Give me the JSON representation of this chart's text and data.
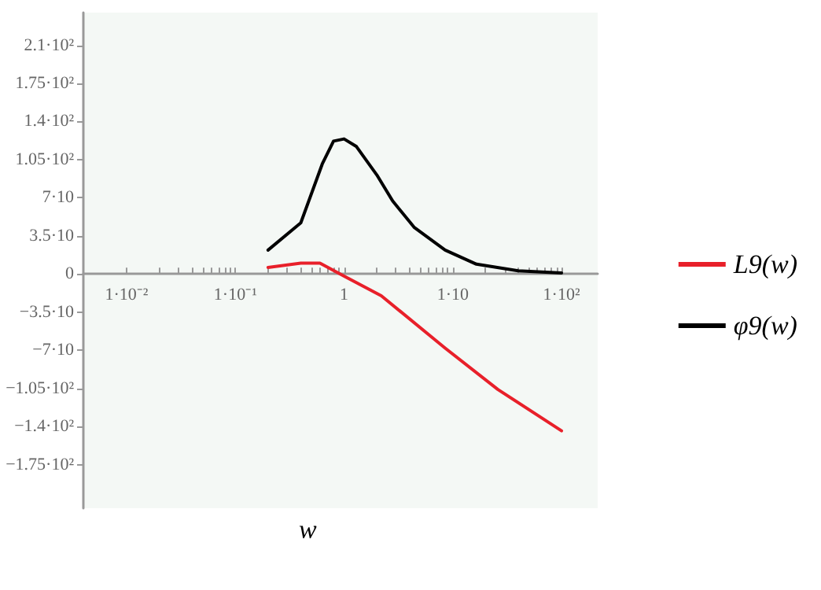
{
  "chart_data": {
    "type": "line",
    "xlabel": "w",
    "log": "x",
    "grid": false,
    "legend": "right",
    "marker": "none",
    "line_style": "solid",
    "xlim": [
      0.004,
      215
    ],
    "ylim": [
      -215,
      240
    ],
    "xticks": [
      {
        "value": 0.01,
        "label": "1·10⁻²"
      },
      {
        "value": 0.02,
        "label": null
      },
      {
        "value": 0.03,
        "label": null
      },
      {
        "value": 0.04,
        "label": null
      },
      {
        "value": 0.05,
        "label": null
      },
      {
        "value": 0.06,
        "label": null
      },
      {
        "value": 0.07,
        "label": null
      },
      {
        "value": 0.08,
        "label": null
      },
      {
        "value": 0.09,
        "label": null
      },
      {
        "value": 0.1,
        "label": "1·10⁻¹"
      },
      {
        "value": 0.2,
        "label": null
      },
      {
        "value": 0.3,
        "label": null
      },
      {
        "value": 0.4,
        "label": null
      },
      {
        "value": 0.5,
        "label": null
      },
      {
        "value": 0.6,
        "label": null
      },
      {
        "value": 0.7,
        "label": null
      },
      {
        "value": 0.8,
        "label": null
      },
      {
        "value": 0.9,
        "label": null
      },
      1,
      {
        "value": 2,
        "label": null
      },
      {
        "value": 3,
        "label": null
      },
      {
        "value": 4,
        "label": null
      },
      {
        "value": 5,
        "label": null
      },
      {
        "value": 6,
        "label": null
      },
      {
        "value": 7,
        "label": null
      },
      {
        "value": 8,
        "label": null
      },
      {
        "value": 9,
        "label": null
      },
      {
        "value": 10,
        "label": "1·10"
      },
      {
        "value": 20,
        "label": null
      },
      {
        "value": 30,
        "label": null
      },
      {
        "value": 40,
        "label": null
      },
      {
        "value": 50,
        "label": null
      },
      {
        "value": 60,
        "label": null
      },
      {
        "value": 70,
        "label": null
      },
      {
        "value": 80,
        "label": null
      },
      {
        "value": 90,
        "label": null
      },
      {
        "value": 100,
        "label": "1·10²"
      }
    ],
    "yticks": [
      {
        "value": -175,
        "label": "−1.75·10²"
      },
      {
        "value": -140,
        "label": "−1.4·10²"
      },
      {
        "value": -105,
        "label": "−1.05·10²"
      },
      {
        "value": -70,
        "label": "−7·10"
      },
      {
        "value": -35,
        "label": "−3.5·10"
      },
      0,
      {
        "value": 35,
        "label": "3.5·10"
      },
      {
        "value": 70,
        "label": "7·10"
      },
      {
        "value": 105,
        "label": "1.05·10²"
      },
      {
        "value": 140,
        "label": "1.4·10²"
      },
      {
        "value": 175,
        "label": "1.75·10²"
      },
      {
        "value": 210,
        "label": "2.1·10²"
      }
    ],
    "series": [
      {
        "name": "L9(w)",
        "color": "#e8202a",
        "x": [
          0.2,
          0.4,
          0.6,
          1,
          2.2,
          8.5,
          26,
          100
        ],
        "values": [
          6,
          10,
          10,
          -2,
          -20,
          -68,
          -106,
          -144
        ]
      },
      {
        "name": "φ9(w)",
        "color": "#000000",
        "x": [
          0.2,
          0.4,
          0.63,
          0.8,
          1,
          1.3,
          2,
          2.8,
          4.4,
          8.5,
          16.5,
          40,
          100
        ],
        "values": [
          22,
          47,
          101,
          122,
          124,
          117,
          91,
          67,
          43,
          22,
          9,
          3,
          1
        ]
      }
    ]
  }
}
